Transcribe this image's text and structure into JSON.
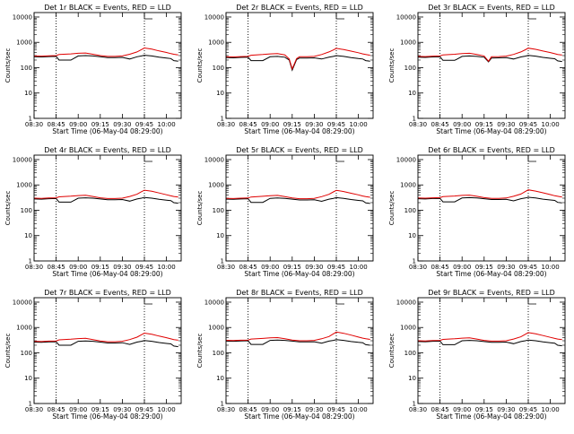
{
  "colors": {
    "events": "#000000",
    "lld": "#e00000",
    "axes": "#000000",
    "background": "#ffffff"
  },
  "chart_data": [
    {
      "type": "line",
      "title": "Det 1r BLACK = Events, RED = LLD",
      "xlabel": "Start Time (06-May-04 08:29:00)",
      "ylabel": "Counts/sec",
      "xticks": [
        "08:30",
        "08:45",
        "09:00",
        "09:15",
        "09:30",
        "09:45",
        "10:00"
      ],
      "yticks": [
        "1",
        "10",
        "100",
        "1000",
        "10000"
      ],
      "yscale": "log",
      "ylim": [
        1,
        15000
      ],
      "xlim": [
        "08:30",
        "10:10"
      ],
      "vlines": [
        "08:45",
        "09:45"
      ],
      "x": [
        "08:30",
        "08:35",
        "08:40",
        "08:45",
        "08:47",
        "08:55",
        "09:00",
        "09:05",
        "09:10",
        "09:15",
        "09:20",
        "09:25",
        "09:30",
        "09:35",
        "09:40",
        "09:43",
        "09:45",
        "09:50",
        "09:55",
        "10:00",
        "10:03",
        "10:05",
        "10:08"
      ],
      "series": [
        {
          "name": "Events",
          "values": [
            270,
            265,
            275,
            280,
            200,
            200,
            290,
            300,
            290,
            270,
            250,
            250,
            255,
            220,
            270,
            290,
            310,
            290,
            260,
            240,
            230,
            190,
            180
          ]
        },
        {
          "name": "LLD",
          "values": [
            290,
            285,
            295,
            300,
            330,
            350,
            370,
            380,
            340,
            300,
            280,
            280,
            290,
            340,
            420,
            520,
            600,
            540,
            460,
            400,
            360,
            340,
            320
          ]
        }
      ]
    },
    {
      "type": "line",
      "title": "Det 2r BLACK = Events, RED = LLD",
      "xlabel": "Start Time (06-May-04 08:29:00)",
      "ylabel": "Counts/sec",
      "xticks": [
        "08:30",
        "08:45",
        "09:00",
        "09:15",
        "09:30",
        "09:45",
        "10:00"
      ],
      "yticks": [
        "1",
        "10",
        "100",
        "1000",
        "10000"
      ],
      "yscale": "log",
      "ylim": [
        1,
        15000
      ],
      "xlim": [
        "08:30",
        "10:10"
      ],
      "vlines": [
        "08:45",
        "09:45"
      ],
      "x": [
        "08:30",
        "08:35",
        "08:40",
        "08:45",
        "08:47",
        "08:55",
        "09:00",
        "09:05",
        "09:10",
        "09:13",
        "09:15",
        "09:18",
        "09:20",
        "09:25",
        "09:30",
        "09:35",
        "09:40",
        "09:43",
        "09:45",
        "09:50",
        "09:55",
        "10:00",
        "10:03",
        "10:05",
        "10:08"
      ],
      "series": [
        {
          "name": "Events",
          "values": [
            250,
            245,
            255,
            260,
            190,
            190,
            270,
            280,
            260,
            200,
            80,
            210,
            240,
            240,
            245,
            220,
            260,
            280,
            300,
            280,
            250,
            230,
            220,
            190,
            180
          ]
        },
        {
          "name": "LLD",
          "values": [
            270,
            265,
            275,
            280,
            310,
            330,
            350,
            360,
            320,
            220,
            90,
            230,
            270,
            270,
            280,
            330,
            420,
            500,
            580,
            520,
            450,
            390,
            350,
            330,
            310
          ]
        }
      ]
    },
    {
      "type": "line",
      "title": "Det 3r BLACK = Events, RED = LLD",
      "xlabel": "Start Time (06-May-04 08:29:00)",
      "ylabel": "Counts/sec",
      "xticks": [
        "08:30",
        "08:45",
        "09:00",
        "09:15",
        "09:30",
        "09:45",
        "10:00"
      ],
      "yticks": [
        "1",
        "10",
        "100",
        "1000",
        "10000"
      ],
      "yscale": "log",
      "ylim": [
        1,
        15000
      ],
      "xlim": [
        "08:30",
        "10:10"
      ],
      "vlines": [
        "08:45",
        "09:45"
      ],
      "x": [
        "08:30",
        "08:35",
        "08:40",
        "08:45",
        "08:47",
        "08:55",
        "09:00",
        "09:05",
        "09:10",
        "09:15",
        "09:18",
        "09:20",
        "09:25",
        "09:30",
        "09:35",
        "09:40",
        "09:43",
        "09:45",
        "09:50",
        "09:55",
        "10:00",
        "10:03",
        "10:05",
        "10:08"
      ],
      "series": [
        {
          "name": "Events",
          "values": [
            260,
            255,
            265,
            270,
            195,
            195,
            280,
            290,
            280,
            260,
            170,
            240,
            245,
            250,
            220,
            265,
            285,
            305,
            285,
            255,
            235,
            225,
            185,
            175
          ]
        },
        {
          "name": "LLD",
          "values": [
            280,
            275,
            285,
            290,
            320,
            340,
            360,
            370,
            330,
            290,
            180,
            270,
            275,
            285,
            335,
            420,
            510,
            590,
            530,
            455,
            395,
            355,
            335,
            315
          ]
        }
      ]
    },
    {
      "type": "line",
      "title": "Det 4r BLACK = Events, RED = LLD",
      "xlabel": "Start Time (06-May-04 08:29:00)",
      "ylabel": "Counts/sec",
      "xticks": [
        "08:30",
        "08:45",
        "09:00",
        "09:15",
        "09:30",
        "09:45",
        "10:00"
      ],
      "yticks": [
        "1",
        "10",
        "100",
        "1000",
        "10000"
      ],
      "yscale": "log",
      "ylim": [
        1,
        15000
      ],
      "xlim": [
        "08:30",
        "10:10"
      ],
      "vlines": [
        "08:45",
        "09:45"
      ],
      "x": [
        "08:30",
        "08:35",
        "08:40",
        "08:45",
        "08:47",
        "08:55",
        "09:00",
        "09:05",
        "09:10",
        "09:15",
        "09:20",
        "09:25",
        "09:30",
        "09:35",
        "09:40",
        "09:43",
        "09:45",
        "09:50",
        "09:55",
        "10:00",
        "10:03",
        "10:05",
        "10:08"
      ],
      "series": [
        {
          "name": "Events",
          "values": [
            280,
            275,
            285,
            290,
            210,
            210,
            300,
            310,
            300,
            280,
            260,
            260,
            265,
            230,
            280,
            300,
            320,
            300,
            270,
            250,
            240,
            200,
            190
          ]
        },
        {
          "name": "LLD",
          "values": [
            300,
            295,
            305,
            310,
            340,
            360,
            380,
            390,
            350,
            310,
            290,
            290,
            300,
            350,
            430,
            540,
            620,
            560,
            480,
            410,
            370,
            350,
            330
          ]
        }
      ]
    },
    {
      "type": "line",
      "title": "Det 5r BLACK = Events, RED = LLD",
      "xlabel": "Start Time (06-May-04 08:29:00)",
      "ylabel": "Counts/sec",
      "xticks": [
        "08:30",
        "08:45",
        "09:00",
        "09:15",
        "09:30",
        "09:45",
        "10:00"
      ],
      "yticks": [
        "1",
        "10",
        "100",
        "1000",
        "10000"
      ],
      "yscale": "log",
      "ylim": [
        1,
        15000
      ],
      "xlim": [
        "08:30",
        "10:10"
      ],
      "vlines": [
        "08:45",
        "09:45"
      ],
      "x": [
        "08:30",
        "08:35",
        "08:40",
        "08:45",
        "08:47",
        "08:55",
        "09:00",
        "09:05",
        "09:10",
        "09:15",
        "09:20",
        "09:25",
        "09:30",
        "09:35",
        "09:40",
        "09:43",
        "09:45",
        "09:50",
        "09:55",
        "10:00",
        "10:03",
        "10:05",
        "10:08"
      ],
      "series": [
        {
          "name": "Events",
          "values": [
            275,
            270,
            280,
            285,
            205,
            205,
            295,
            305,
            295,
            275,
            255,
            255,
            260,
            225,
            275,
            295,
            315,
            295,
            265,
            245,
            235,
            195,
            185
          ]
        },
        {
          "name": "LLD",
          "values": [
            295,
            290,
            300,
            305,
            335,
            355,
            375,
            385,
            345,
            305,
            285,
            285,
            295,
            345,
            425,
            530,
            610,
            550,
            470,
            405,
            365,
            345,
            325
          ]
        }
      ]
    },
    {
      "type": "line",
      "title": "Det 6r BLACK = Events, RED = LLD",
      "xlabel": "Start Time (06-May-04 08:29:00)",
      "ylabel": "Counts/sec",
      "xticks": [
        "08:30",
        "08:45",
        "09:00",
        "09:15",
        "09:30",
        "09:45",
        "10:00"
      ],
      "yticks": [
        "1",
        "10",
        "100",
        "1000",
        "10000"
      ],
      "yscale": "log",
      "ylim": [
        1,
        15000
      ],
      "xlim": [
        "08:30",
        "10:10"
      ],
      "vlines": [
        "08:45",
        "09:45"
      ],
      "x": [
        "08:30",
        "08:35",
        "08:40",
        "08:45",
        "08:47",
        "08:55",
        "09:00",
        "09:05",
        "09:10",
        "09:15",
        "09:20",
        "09:25",
        "09:30",
        "09:35",
        "09:40",
        "09:43",
        "09:45",
        "09:50",
        "09:55",
        "10:00",
        "10:03",
        "10:05",
        "10:08"
      ],
      "series": [
        {
          "name": "Events",
          "values": [
            285,
            280,
            290,
            295,
            215,
            215,
            305,
            315,
            305,
            285,
            265,
            265,
            270,
            235,
            285,
            305,
            325,
            305,
            275,
            255,
            245,
            205,
            195
          ]
        },
        {
          "name": "LLD",
          "values": [
            305,
            300,
            310,
            315,
            345,
            365,
            385,
            395,
            355,
            315,
            295,
            295,
            305,
            355,
            435,
            550,
            640,
            570,
            490,
            415,
            375,
            355,
            335
          ]
        }
      ]
    },
    {
      "type": "line",
      "title": "Det 7r BLACK = Events, RED = LLD",
      "xlabel": "Start Time (06-May-04 08:29:00)",
      "ylabel": "Counts/sec",
      "xticks": [
        "08:30",
        "08:45",
        "09:00",
        "09:15",
        "09:30",
        "09:45",
        "10:00"
      ],
      "yticks": [
        "1",
        "10",
        "100",
        "1000",
        "10000"
      ],
      "yscale": "log",
      "ylim": [
        1,
        15000
      ],
      "xlim": [
        "08:30",
        "10:10"
      ],
      "vlines": [
        "08:45",
        "09:45"
      ],
      "x": [
        "08:30",
        "08:35",
        "08:40",
        "08:45",
        "08:47",
        "08:55",
        "09:00",
        "09:05",
        "09:10",
        "09:15",
        "09:20",
        "09:25",
        "09:30",
        "09:35",
        "09:40",
        "09:43",
        "09:45",
        "09:50",
        "09:55",
        "10:00",
        "10:03",
        "10:05",
        "10:08"
      ],
      "series": [
        {
          "name": "Events",
          "values": [
            265,
            260,
            270,
            275,
            200,
            200,
            285,
            295,
            285,
            265,
            245,
            245,
            250,
            215,
            265,
            285,
            305,
            285,
            255,
            235,
            225,
            185,
            175
          ]
        },
        {
          "name": "LLD",
          "values": [
            285,
            280,
            290,
            295,
            325,
            345,
            365,
            375,
            335,
            295,
            275,
            275,
            285,
            335,
            415,
            520,
            600,
            540,
            460,
            395,
            355,
            335,
            315
          ]
        }
      ]
    },
    {
      "type": "line",
      "title": "Det 8r BLACK = Events, RED = LLD",
      "xlabel": "Start Time (06-May-04 08:29:00)",
      "ylabel": "Counts/sec",
      "xticks": [
        "08:30",
        "08:45",
        "09:00",
        "09:15",
        "09:30",
        "09:45",
        "10:00"
      ],
      "yticks": [
        "1",
        "10",
        "100",
        "1000",
        "10000"
      ],
      "yscale": "log",
      "ylim": [
        1,
        15000
      ],
      "xlim": [
        "08:30",
        "10:10"
      ],
      "vlines": [
        "08:45",
        "09:45"
      ],
      "x": [
        "08:30",
        "08:35",
        "08:40",
        "08:45",
        "08:47",
        "08:55",
        "09:00",
        "09:05",
        "09:10",
        "09:15",
        "09:20",
        "09:25",
        "09:30",
        "09:35",
        "09:40",
        "09:43",
        "09:45",
        "09:50",
        "09:55",
        "10:00",
        "10:03",
        "10:05",
        "10:08"
      ],
      "series": [
        {
          "name": "Events",
          "values": [
            290,
            285,
            295,
            300,
            215,
            215,
            310,
            320,
            310,
            290,
            270,
            270,
            275,
            240,
            290,
            310,
            330,
            310,
            280,
            260,
            250,
            210,
            200
          ]
        },
        {
          "name": "LLD",
          "values": [
            310,
            305,
            315,
            320,
            350,
            370,
            390,
            400,
            360,
            320,
            300,
            300,
            310,
            360,
            440,
            560,
            660,
            590,
            500,
            420,
            380,
            360,
            340
          ]
        }
      ]
    },
    {
      "type": "line",
      "title": "Det 9r BLACK = Events, RED = LLD",
      "xlabel": "Start Time (06-May-04 08:29:00)",
      "ylabel": "Counts/sec",
      "xticks": [
        "08:30",
        "08:45",
        "09:00",
        "09:15",
        "09:30",
        "09:45",
        "10:00"
      ],
      "yticks": [
        "1",
        "10",
        "100",
        "1000",
        "10000"
      ],
      "yscale": "log",
      "ylim": [
        1,
        15000
      ],
      "xlim": [
        "08:30",
        "10:10"
      ],
      "vlines": [
        "08:45",
        "09:45"
      ],
      "x": [
        "08:30",
        "08:35",
        "08:40",
        "08:45",
        "08:47",
        "08:55",
        "09:00",
        "09:05",
        "09:10",
        "09:15",
        "09:20",
        "09:25",
        "09:30",
        "09:35",
        "09:40",
        "09:43",
        "09:45",
        "09:50",
        "09:55",
        "10:00",
        "10:03",
        "10:05",
        "10:08"
      ],
      "series": [
        {
          "name": "Events",
          "values": [
            280,
            275,
            285,
            290,
            210,
            210,
            300,
            310,
            300,
            280,
            260,
            260,
            265,
            230,
            280,
            300,
            320,
            300,
            270,
            250,
            240,
            200,
            190
          ]
        },
        {
          "name": "LLD",
          "values": [
            300,
            295,
            305,
            310,
            340,
            360,
            380,
            390,
            350,
            310,
            290,
            290,
            300,
            350,
            430,
            540,
            630,
            560,
            480,
            410,
            370,
            350,
            330
          ]
        }
      ]
    }
  ]
}
